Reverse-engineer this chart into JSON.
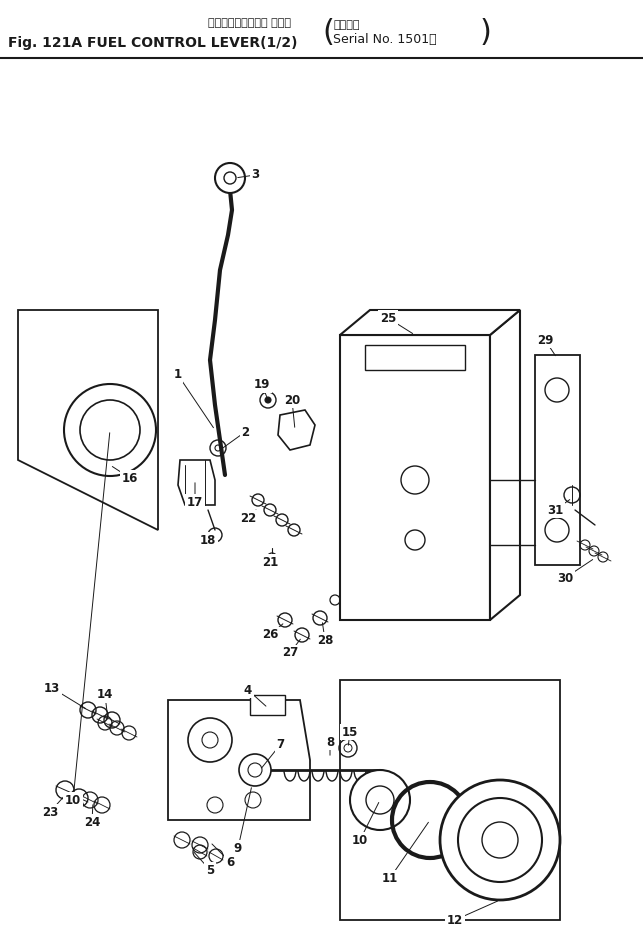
{
  "title_jp": "フェルコントロール レバー",
  "title_en": "Fig. 121A FUEL CONTROL LEVER(1/2)",
  "serial_jp": "適用号機",
  "serial_en": "Serial No. 1501～",
  "bg_color": "#ffffff",
  "lc": "#1a1a1a",
  "fig_w": 6.43,
  "fig_h": 9.34,
  "dpi": 100
}
